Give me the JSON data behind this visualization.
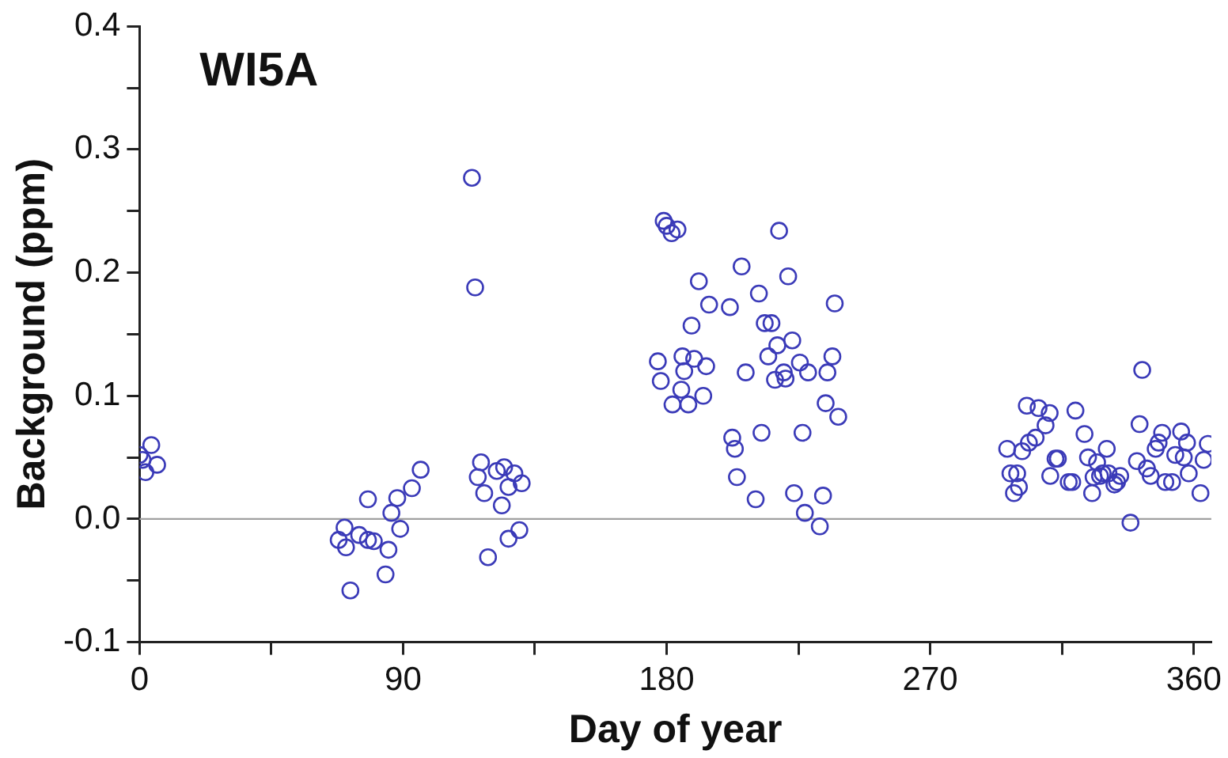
{
  "chart_data": {
    "type": "scatter",
    "title": "WI5A",
    "xlabel": "Day of year",
    "ylabel": "Background (ppm)",
    "xlim": [
      0,
      366
    ],
    "xticks": [
      0,
      {
        "value": 45,
        "label": null
      },
      90,
      {
        "value": 135,
        "label": null
      },
      180,
      {
        "value": 225,
        "label": null
      },
      270,
      {
        "value": 315,
        "label": null
      },
      360
    ],
    "ylim": [
      -0.1,
      0.4
    ],
    "yticks": [
      {
        "value": -0.1,
        "label": "-0.1"
      },
      {
        "value": -0.05,
        "label": null
      },
      {
        "value": 0,
        "label": "0.0"
      },
      {
        "value": 0.05,
        "label": null
      },
      {
        "value": 0.1,
        "label": "0.1"
      },
      {
        "value": 0.15,
        "label": null
      },
      {
        "value": 0.2,
        "label": "0.2"
      },
      {
        "value": 0.25,
        "label": null
      },
      {
        "value": 0.3,
        "label": "0.3"
      },
      {
        "value": 0.35,
        "label": null
      },
      {
        "value": 0.4,
        "label": "0.4"
      }
    ],
    "grid": false,
    "legend": false,
    "marker": "circle",
    "ref_lines": [
      {
        "axis": "y",
        "value": 0,
        "color": "#a0a0a0"
      }
    ],
    "series": [
      {
        "color": "#3a3ab8",
        "x": [
          0,
          4,
          2,
          6,
          1,
          68,
          70,
          70.5,
          72,
          75,
          78,
          80,
          78,
          84,
          85,
          86,
          88,
          89,
          93,
          96,
          113.5,
          114.6,
          116.6,
          115.5,
          117.7,
          119,
          122,
          124.5,
          123.7,
          126,
          126,
          128,
          129.7,
          130.5,
          177,
          178,
          179,
          180,
          181.7,
          183.7,
          182,
          185,
          186,
          185.4,
          187.4,
          188.5,
          189.4,
          191,
          192.5,
          193.5,
          194.5,
          201.6,
          202.4,
          203.3,
          204,
          205.6,
          207,
          210.4,
          211.5,
          212.4,
          213.5,
          215.8,
          214.7,
          217,
          218.4,
          217.8,
          220,
          220.6,
          221.5,
          222.9,
          223.5,
          225.5,
          226.4,
          227.2,
          228.3,
          232.3,
          233.4,
          234.3,
          234.9,
          236.6,
          237.4,
          238.6,
          296.3,
          297.4,
          298.6,
          299.7,
          300.3,
          301.4,
          303,
          303.7,
          306,
          307,
          309.4,
          310.8,
          311,
          312.8,
          313.6,
          317.3,
          318.5,
          319.6,
          322.7,
          323.9,
          325.3,
          325.8,
          327,
          328,
          328.9,
          330.3,
          330.9,
          332.9,
          333.8,
          334.9,
          338.4,
          340.6,
          341.5,
          342.4,
          344,
          345.3,
          347,
          348,
          349.2,
          350.3,
          352.6,
          353.7,
          355.7,
          356.6,
          357.7,
          358.3,
          362.3,
          363.4,
          364.8
        ],
        "values": [
          0.052,
          0.06,
          0.038,
          0.044,
          0.048,
          -0.017,
          -0.007,
          -0.023,
          -0.058,
          -0.013,
          -0.017,
          -0.018,
          0.016,
          -0.045,
          -0.025,
          0.005,
          0.017,
          -0.008,
          0.025,
          0.04,
          0.277,
          0.188,
          0.046,
          0.034,
          0.021,
          -0.031,
          0.039,
          0.042,
          0.011,
          -0.016,
          0.026,
          0.037,
          -0.009,
          0.029,
          0.128,
          0.112,
          0.242,
          0.238,
          0.232,
          0.235,
          0.093,
          0.105,
          0.12,
          0.132,
          0.093,
          0.157,
          0.13,
          0.193,
          0.1,
          0.124,
          0.174,
          0.172,
          0.066,
          0.057,
          0.034,
          0.205,
          0.119,
          0.016,
          0.183,
          0.07,
          0.159,
          0.159,
          0.132,
          0.113,
          0.234,
          0.141,
          0.119,
          0.114,
          0.197,
          0.145,
          0.021,
          0.127,
          0.07,
          0.005,
          0.119,
          -0.006,
          0.019,
          0.094,
          0.119,
          0.132,
          0.175,
          0.083,
          0.057,
          0.037,
          0.021,
          0.037,
          0.026,
          0.055,
          0.092,
          0.062,
          0.066,
          0.09,
          0.076,
          0.086,
          0.035,
          0.049,
          0.049,
          0.03,
          0.03,
          0.088,
          0.069,
          0.05,
          0.021,
          0.034,
          0.046,
          0.035,
          0.037,
          0.057,
          0.037,
          0.028,
          0.03,
          0.035,
          -0.003,
          0.047,
          0.077,
          0.121,
          0.041,
          0.035,
          0.057,
          0.062,
          0.07,
          0.03,
          0.03,
          0.052,
          0.071,
          0.05,
          0.062,
          0.037,
          0.021,
          0.048,
          0.061
        ]
      }
    ]
  }
}
